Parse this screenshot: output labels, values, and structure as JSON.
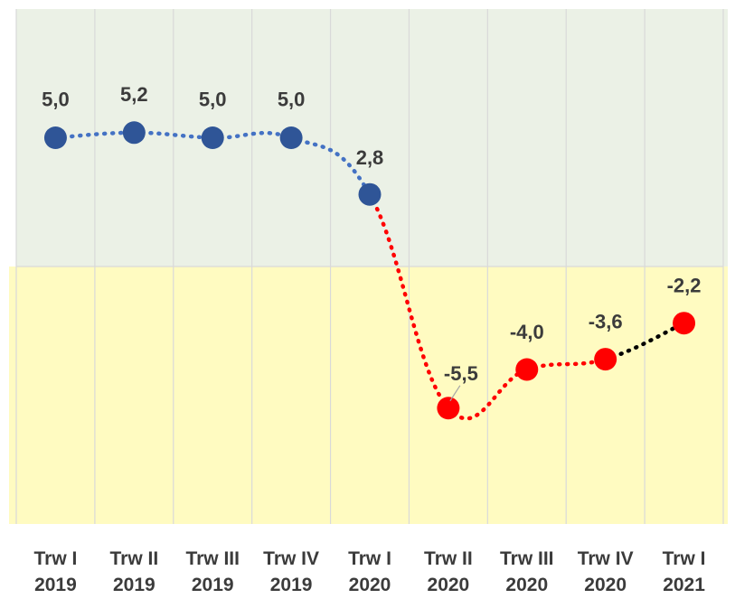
{
  "chart_data": {
    "type": "line",
    "categories": [
      "Trw I\n2019",
      "Trw II\n2019",
      "Trw III\n2019",
      "Trw IV\n2019",
      "Trw I\n2020",
      "Trw II\n2020",
      "Trw III\n2020",
      "Trw IV\n2020",
      "Trw I\n2021"
    ],
    "values": [
      5.0,
      5.2,
      5.0,
      5.0,
      2.8,
      -5.5,
      -4.0,
      -3.6,
      -2.2
    ],
    "value_labels": [
      "5,0",
      "5,2",
      "5,0",
      "5,0",
      "2,8",
      "-5,5",
      "-4,0",
      "-3,6",
      "-2,2"
    ],
    "ylim": [
      -10,
      10
    ],
    "grid": "vertical",
    "background_bands": [
      {
        "from": 0,
        "to": 10,
        "color": "#ebf1e6"
      },
      {
        "from": -10,
        "to": 0,
        "color": "#fffbc1"
      }
    ],
    "colors": {
      "positive_point": "#2f5597",
      "positive_line": "#4472c4",
      "negative_point": "#ff0000",
      "negative_line": "#ff0000",
      "forecast_line": "#000000",
      "label": "#3b3b3b"
    }
  }
}
